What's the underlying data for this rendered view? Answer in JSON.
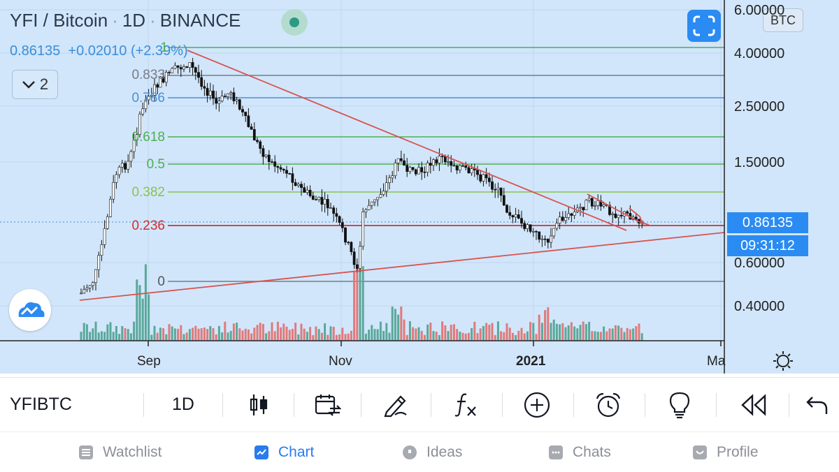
{
  "header": {
    "symbol_title": "YFI / Bitcoin",
    "interval": "1D",
    "exchange": "BINANCE",
    "price": "0.86135",
    "change": "+0.02010 (+2.39%)"
  },
  "indicator_count": "2",
  "currency_badge": "BTC",
  "price_axis": {
    "ticks": [
      "6.00000",
      "4.00000",
      "2.50000",
      "1.50000",
      "0.60000",
      "0.40000"
    ],
    "current_price": "0.86135",
    "countdown": "09:31:12"
  },
  "time_axis": {
    "ticks": [
      "Sep",
      "Nov",
      "2021",
      "Ma"
    ]
  },
  "fib_levels": [
    "1",
    "0.833",
    "0.786",
    "0.618",
    "0.5",
    "0.382",
    "0.236",
    "0"
  ],
  "colors": {
    "chart_bg": "#d1e6fb",
    "accent": "#2a8bf2",
    "trendline": "#d9534f",
    "fib_gray": "#787b86",
    "fib_blue": "#4b8fd6",
    "fib_green": "#4caf50",
    "fib_lime": "#8bc34a",
    "fib_red": "#d32f2f",
    "volume_up": "#5aa89a",
    "volume_down": "#e07a7a"
  },
  "toolbar": {
    "symbol": "YFIBTC",
    "interval": "1D",
    "icons": [
      "candles-icon",
      "calendar-replay-icon",
      "pencil-icon",
      "function-icon",
      "plus-circle-icon",
      "alarm-clock-icon",
      "lightbulb-icon",
      "rewind-icon",
      "undo-icon"
    ]
  },
  "tabs": [
    {
      "label": "Watchlist",
      "icon": "list-icon",
      "active": false
    },
    {
      "label": "Chart",
      "icon": "chart-icon",
      "active": true
    },
    {
      "label": "Ideas",
      "icon": "ideas-icon",
      "active": false
    },
    {
      "label": "Chats",
      "icon": "chat-icon",
      "active": false
    },
    {
      "label": "Profile",
      "icon": "profile-icon",
      "active": false
    }
  ]
}
